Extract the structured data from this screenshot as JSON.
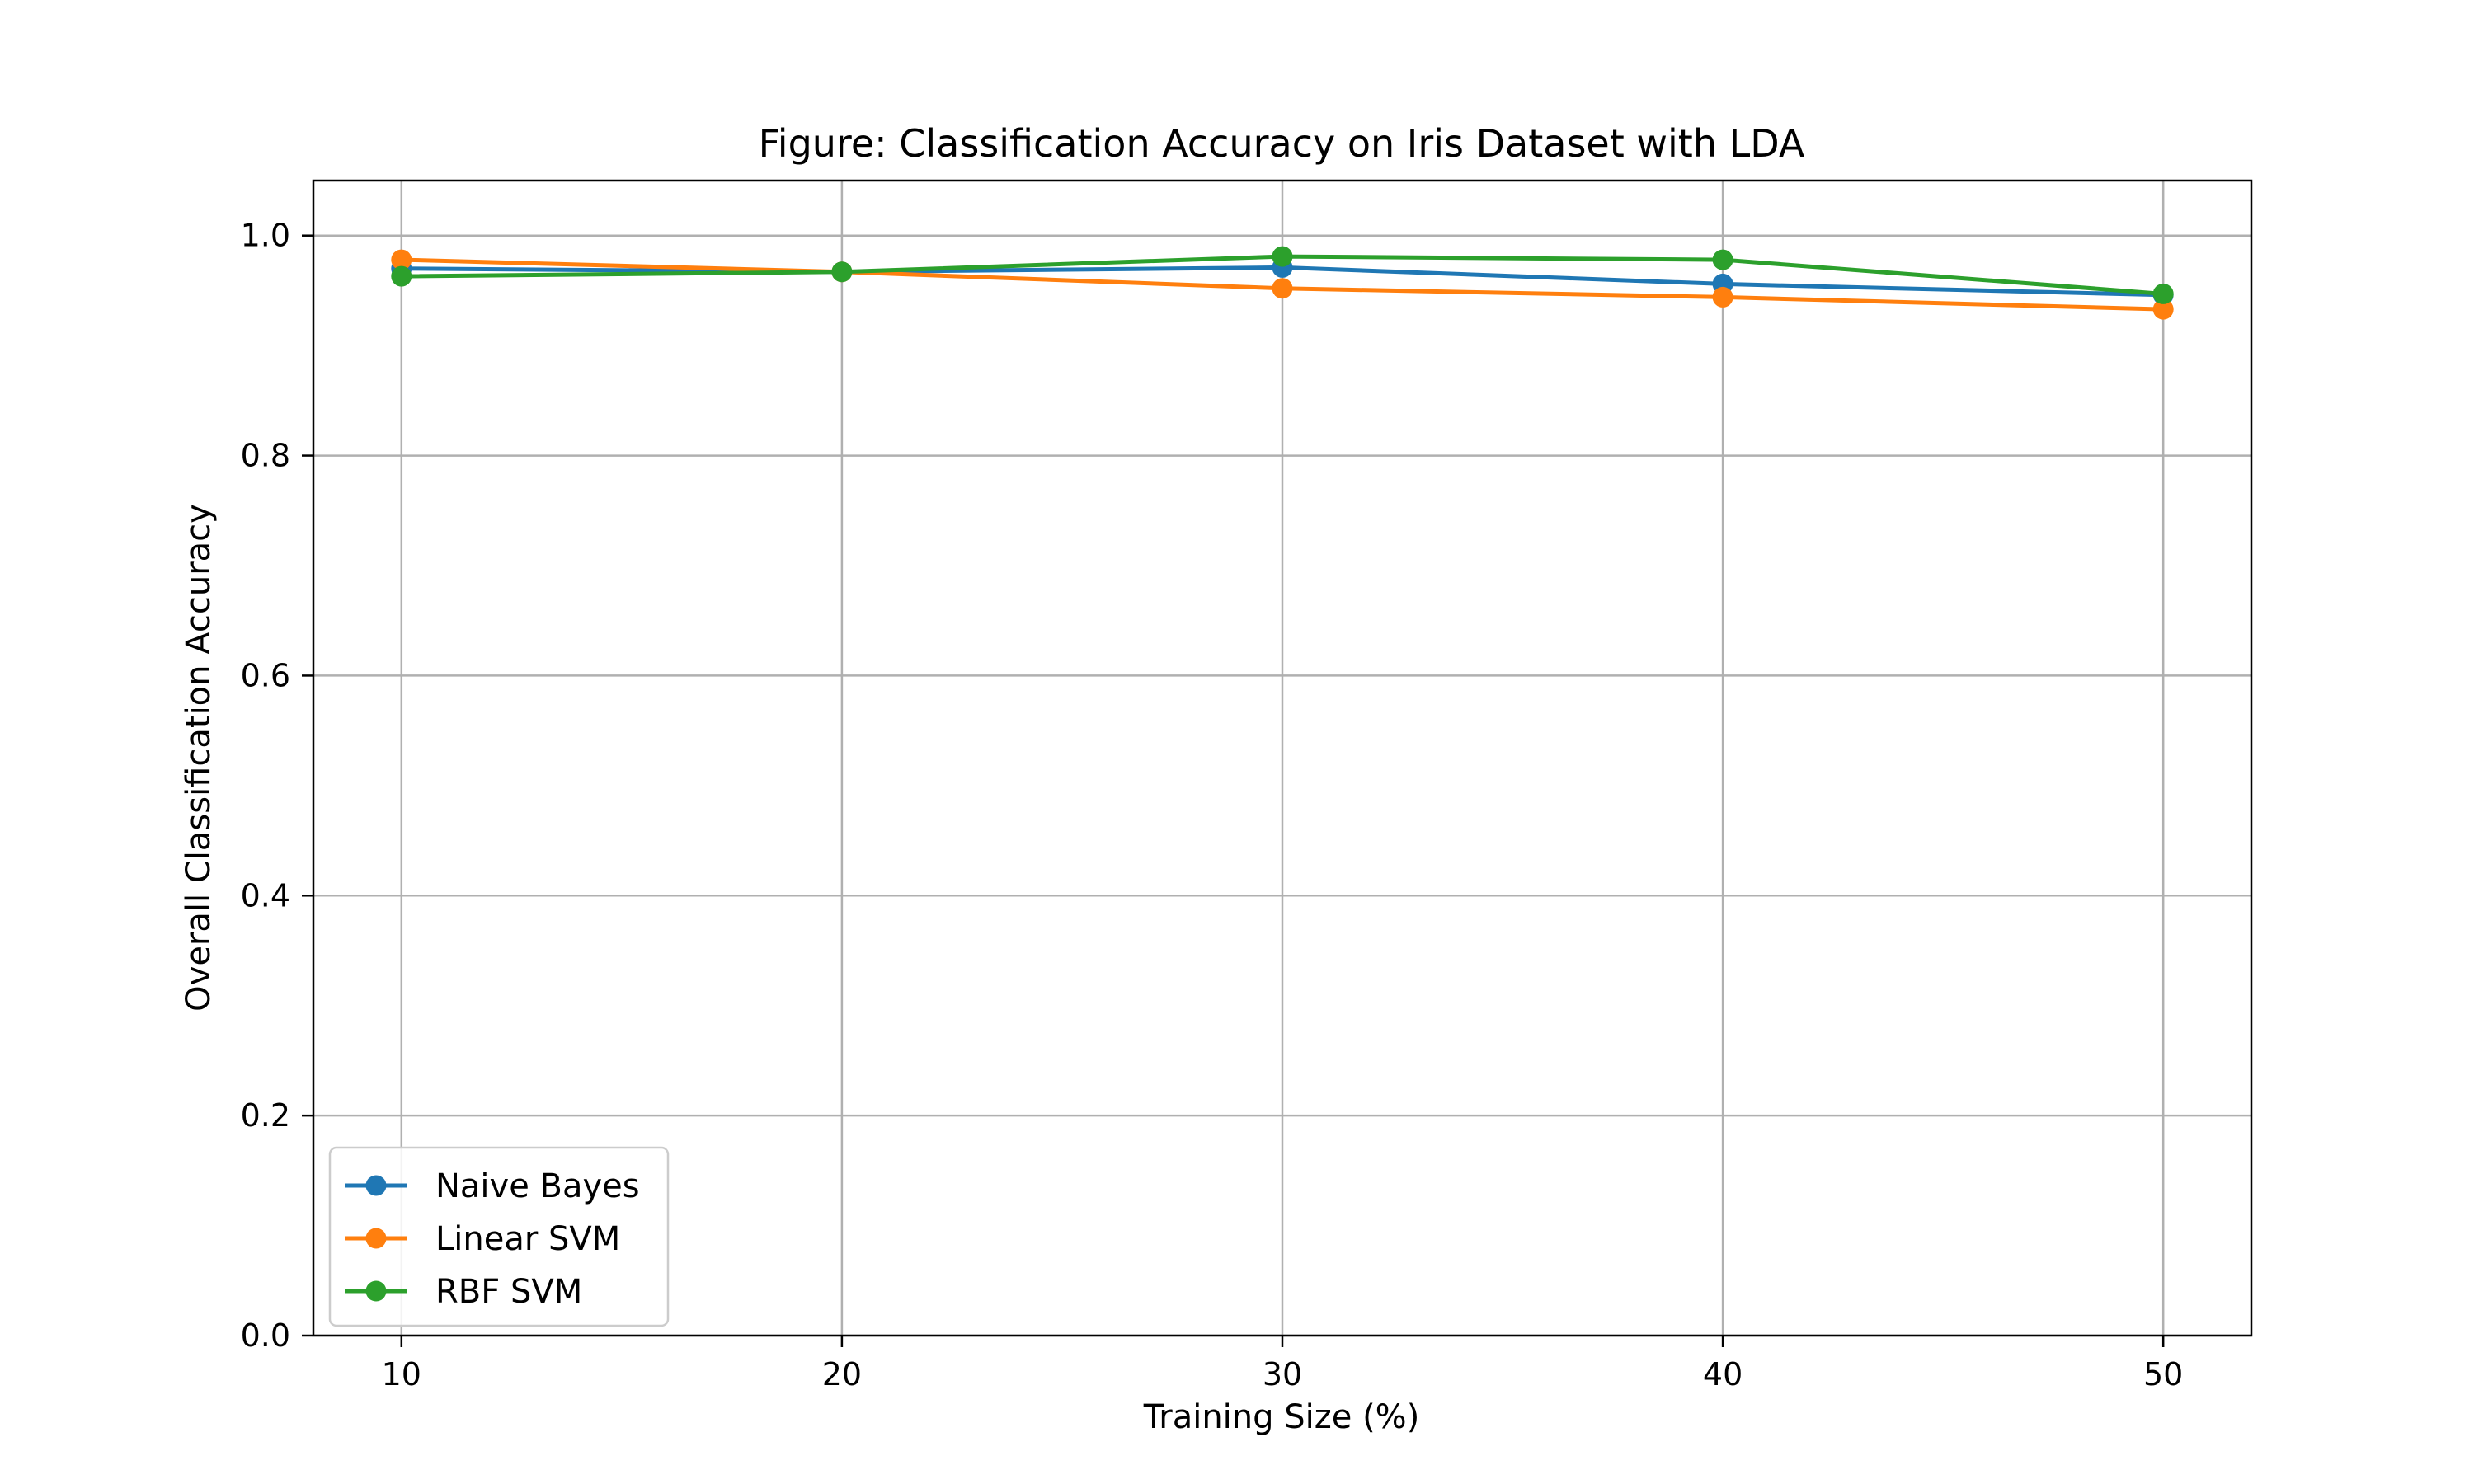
{
  "chart_data": {
    "type": "line",
    "title": "Figure: Classification Accuracy on Iris Dataset with LDA",
    "xlabel": "Training Size (%)",
    "ylabel": "Overall Classification Accuracy",
    "x": [
      10,
      20,
      30,
      40,
      50
    ],
    "xlim": [
      8,
      52
    ],
    "ylim": [
      0.0,
      1.05
    ],
    "xticks": [
      "10",
      "20",
      "30",
      "40",
      "50"
    ],
    "yticks": [
      "0.0",
      "0.2",
      "0.4",
      "0.6",
      "0.8",
      "1.0"
    ],
    "grid": true,
    "legend_position": "lower-left",
    "series": [
      {
        "name": "Naive Bayes",
        "color": "#1f77b4",
        "marker": "circle",
        "values": [
          0.97,
          0.967,
          0.971,
          0.956,
          0.946
        ]
      },
      {
        "name": "Linear SVM",
        "color": "#ff7f0e",
        "marker": "circle",
        "values": [
          0.978,
          0.967,
          0.952,
          0.944,
          0.933
        ]
      },
      {
        "name": "RBF SVM",
        "color": "#2ca02c",
        "marker": "circle",
        "values": [
          0.963,
          0.967,
          0.981,
          0.978,
          0.947
        ]
      }
    ]
  }
}
